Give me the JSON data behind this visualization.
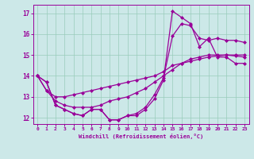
{
  "background_color": "#cce8e8",
  "grid_color": "#99ccbb",
  "line_color": "#990099",
  "marker": "D",
  "markersize": 2,
  "linewidth": 0.9,
  "xlim": [
    -0.5,
    23.5
  ],
  "ylim": [
    11.7,
    17.4
  ],
  "yticks": [
    12,
    13,
    14,
    15,
    16,
    17
  ],
  "xticks": [
    0,
    1,
    2,
    3,
    4,
    5,
    6,
    7,
    8,
    9,
    10,
    11,
    12,
    13,
    14,
    15,
    16,
    17,
    18,
    19,
    20,
    21,
    22,
    23
  ],
  "xlabel": "Windchill (Refroidissement éolien,°C)",
  "series": [
    {
      "x": [
        0,
        1,
        2,
        3,
        4,
        5,
        6,
        7,
        8,
        9,
        10,
        11,
        12,
        13,
        14,
        15,
        16,
        17,
        18,
        19,
        20,
        21,
        22,
        23
      ],
      "y": [
        14.0,
        13.7,
        12.6,
        12.4,
        12.2,
        12.1,
        12.4,
        12.4,
        11.9,
        11.9,
        12.1,
        12.1,
        12.4,
        12.9,
        13.8,
        17.1,
        16.8,
        16.5,
        15.4,
        15.8,
        14.9,
        14.9,
        14.6,
        14.6
      ]
    },
    {
      "x": [
        0,
        1,
        2,
        3,
        4,
        5,
        6,
        7,
        8,
        9,
        10,
        11,
        12,
        13,
        14,
        15,
        16,
        17,
        18,
        19,
        20,
        21,
        22,
        23
      ],
      "y": [
        14.0,
        13.7,
        12.6,
        12.4,
        12.2,
        12.1,
        12.4,
        12.4,
        11.9,
        11.9,
        12.1,
        12.2,
        12.5,
        13.1,
        13.9,
        15.9,
        16.5,
        16.4,
        15.8,
        15.7,
        15.8,
        15.7,
        15.7,
        15.6
      ]
    },
    {
      "x": [
        0,
        1,
        2,
        3,
        4,
        5,
        6,
        7,
        8,
        9,
        10,
        11,
        12,
        13,
        14,
        15,
        16,
        17,
        18,
        19,
        20,
        21,
        22,
        23
      ],
      "y": [
        14.0,
        13.3,
        13.0,
        13.0,
        13.1,
        13.2,
        13.3,
        13.4,
        13.5,
        13.6,
        13.7,
        13.8,
        13.9,
        14.0,
        14.2,
        14.5,
        14.6,
        14.7,
        14.8,
        14.9,
        14.95,
        15.0,
        15.0,
        15.0
      ]
    },
    {
      "x": [
        0,
        1,
        2,
        3,
        4,
        5,
        6,
        7,
        8,
        9,
        10,
        11,
        12,
        13,
        14,
        15,
        16,
        17,
        18,
        19,
        20,
        21,
        22,
        23
      ],
      "y": [
        14.0,
        13.3,
        12.8,
        12.6,
        12.5,
        12.5,
        12.5,
        12.6,
        12.8,
        12.9,
        13.0,
        13.2,
        13.4,
        13.7,
        14.0,
        14.3,
        14.6,
        14.8,
        14.9,
        15.0,
        15.0,
        15.0,
        14.95,
        14.9
      ]
    }
  ]
}
